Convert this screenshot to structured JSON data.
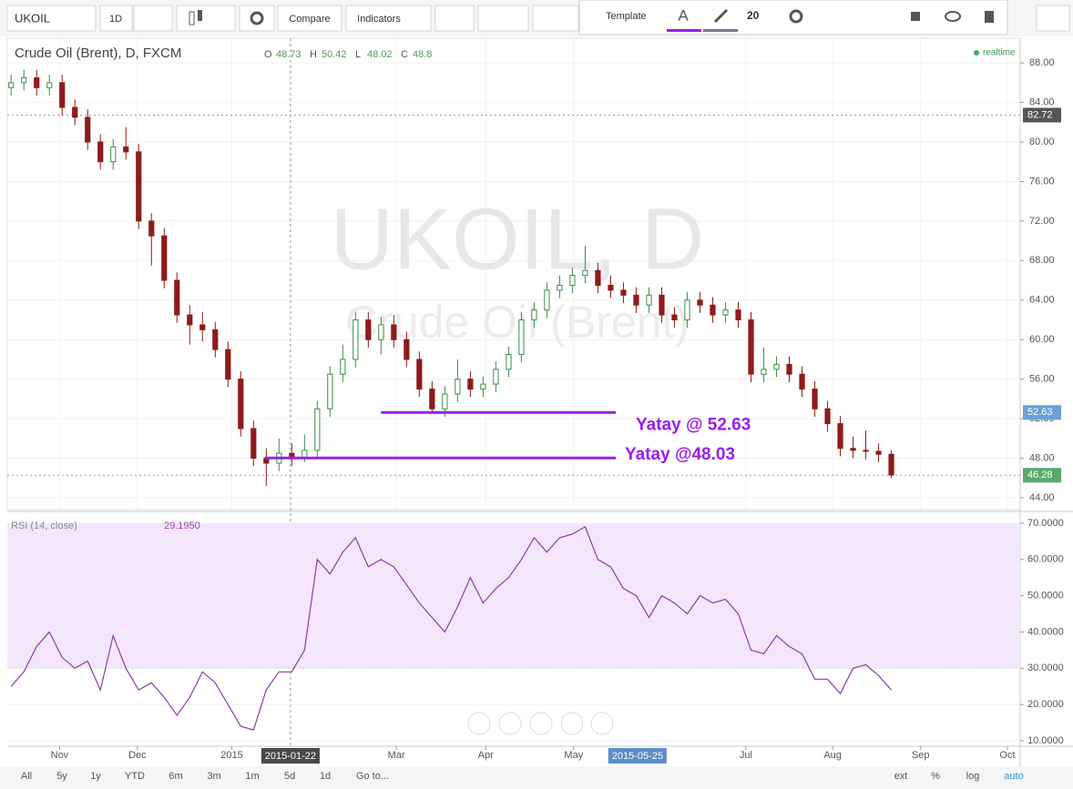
{
  "toolbar": {
    "symbol": "UKOIL",
    "interval": "1D",
    "compare": "Compare",
    "indicators": "Indicators"
  },
  "drawing_toolbar": {
    "template": "Template",
    "font_icon": "A",
    "size": "20"
  },
  "range_bar": [
    "All",
    "5y",
    "1y",
    "YTD",
    "6m",
    "3m",
    "1m",
    "5d",
    "1d",
    "Go to..."
  ],
  "scale_options": [
    "ext",
    "%",
    "log",
    "auto"
  ],
  "chart_data": [
    {
      "type": "candlestick",
      "title": "Crude Oil (Brent), D, FXCM",
      "watermark": [
        "UKOIL, D",
        "Crude Oil (Brent)"
      ],
      "status": "realtime",
      "ohlc_legend": [
        {
          "key": "O",
          "value": 48.73
        },
        {
          "key": "H",
          "value": 50.42
        },
        {
          "key": "L",
          "value": 48.02
        },
        {
          "key": "C",
          "value": 48.8
        }
      ],
      "up_color": "#3d8b4a",
      "down_color": "#8e1b1b",
      "xlim": [
        -0.3,
        79.1
      ],
      "ylim": [
        42.8,
        90.5
      ],
      "grid": true,
      "yticks": [
        {
          "value": 44,
          "label": "44.00"
        },
        {
          "value": 48,
          "label": "48.00"
        },
        {
          "value": 52,
          "label": "52.00"
        },
        {
          "value": 56,
          "label": "56.00"
        },
        {
          "value": 60,
          "label": "60.00"
        },
        {
          "value": 64,
          "label": "64.00"
        },
        {
          "value": 68,
          "label": "68.00"
        },
        {
          "value": 72,
          "label": "72.00"
        },
        {
          "value": 76,
          "label": "76.00"
        },
        {
          "value": 80,
          "label": "80.00"
        },
        {
          "value": 84,
          "label": "84.00"
        },
        {
          "value": 88,
          "label": "88.00"
        }
      ],
      "price_labels": [
        {
          "value": 82.72,
          "color": "#555555",
          "dashed": true
        },
        {
          "value": 52.63,
          "color": "#6a9fd8",
          "dashed": false
        },
        {
          "value": 46.28,
          "color": "#5ba96e",
          "dashed": true
        }
      ],
      "levels": [
        {
          "label": "Yatay @ 52.63",
          "value": 52.63,
          "x": [
            29,
            47.4
          ],
          "color": "#9b1dea"
        },
        {
          "label": "Yatay @48.03",
          "value": 48.03,
          "x": [
            19.9,
            47.4
          ],
          "color": "#9b1dea"
        }
      ],
      "candles": [
        [
          85.5,
          86.8,
          84.7,
          86
        ],
        [
          86,
          87.3,
          85.2,
          86.5
        ],
        [
          86.5,
          87.3,
          84.7,
          85.5
        ],
        [
          85.5,
          86.8,
          84.7,
          86
        ],
        [
          86,
          86.8,
          82.7,
          83.5
        ],
        [
          83.5,
          84.3,
          81.7,
          82.5
        ],
        [
          82.5,
          83.3,
          79.2,
          80
        ],
        [
          80,
          80.8,
          77.2,
          78
        ],
        [
          78,
          80.3,
          77.2,
          79.5
        ],
        [
          79.5,
          81.5,
          78.2,
          79
        ],
        [
          79,
          79.8,
          71.2,
          72
        ],
        [
          72,
          72.8,
          67.5,
          70.5
        ],
        [
          70.5,
          71.3,
          65.2,
          66
        ],
        [
          66,
          66.8,
          61.7,
          62.5
        ],
        [
          62.5,
          63.5,
          59.5,
          61.5
        ],
        [
          61.5,
          62.8,
          59.8,
          61
        ],
        [
          61,
          61.8,
          58.2,
          59
        ],
        [
          59,
          59.8,
          55.2,
          56
        ],
        [
          56,
          56.8,
          50.2,
          51
        ],
        [
          51,
          51.8,
          47.2,
          48
        ],
        [
          48,
          49,
          45.2,
          47.5
        ],
        [
          47.5,
          50,
          46.7,
          48.5
        ],
        [
          48.5,
          49.5,
          47.2,
          48
        ],
        [
          48,
          50.4,
          47.6,
          48.8
        ],
        [
          48.8,
          53.8,
          48,
          53
        ],
        [
          53,
          57.3,
          52.2,
          56.5
        ],
        [
          56.5,
          59.5,
          55.7,
          58
        ],
        [
          58,
          62.8,
          57.2,
          62
        ],
        [
          62,
          62.8,
          59.2,
          60
        ],
        [
          60,
          62.3,
          58.5,
          61.5
        ],
        [
          61.5,
          62.5,
          59.2,
          60
        ],
        [
          60,
          60.8,
          57.2,
          58
        ],
        [
          58,
          58.8,
          54.2,
          55
        ],
        [
          55,
          55.8,
          52.5,
          53
        ],
        [
          53,
          55.3,
          52.2,
          54.5
        ],
        [
          54.5,
          58,
          53.7,
          56
        ],
        [
          56,
          56.8,
          54.2,
          55
        ],
        [
          55,
          56.3,
          54.2,
          55.5
        ],
        [
          55.5,
          57.8,
          54.7,
          57
        ],
        [
          57,
          59.3,
          56.2,
          58.5
        ],
        [
          58.5,
          62.8,
          57.7,
          62
        ],
        [
          62,
          63.8,
          61.2,
          63
        ],
        [
          63,
          65.8,
          62.2,
          65
        ],
        [
          65,
          66.5,
          64.2,
          65.5
        ],
        [
          65.5,
          67.3,
          64.7,
          66.5
        ],
        [
          66.5,
          69.5,
          65.7,
          67
        ],
        [
          67,
          67.8,
          64.7,
          65.5
        ],
        [
          65.5,
          66.5,
          64.2,
          65
        ],
        [
          65,
          65.8,
          63.7,
          64.5
        ],
        [
          64.5,
          65.3,
          62.7,
          63.5
        ],
        [
          63.5,
          65.3,
          62.7,
          64.5
        ],
        [
          64.5,
          65.3,
          61.7,
          62.5
        ],
        [
          62.5,
          63.3,
          61.2,
          62
        ],
        [
          62,
          64.8,
          61.2,
          64
        ],
        [
          64,
          64.8,
          62.7,
          63.5
        ],
        [
          63.5,
          64.3,
          61.7,
          62.5
        ],
        [
          62.5,
          63.8,
          61.7,
          63
        ],
        [
          63,
          63.8,
          61.2,
          62
        ],
        [
          62,
          62.8,
          55.7,
          56.5
        ],
        [
          56.5,
          59.2,
          55.7,
          57
        ],
        [
          57,
          58.3,
          56.2,
          57.5
        ],
        [
          57.5,
          58.3,
          55.7,
          56.5
        ],
        [
          56.5,
          57.3,
          54.2,
          55
        ],
        [
          55,
          55.8,
          52.2,
          53
        ],
        [
          53,
          53.8,
          50.7,
          51.5
        ],
        [
          51.5,
          52.3,
          48.2,
          49
        ],
        [
          49,
          50.2,
          48,
          48.8
        ],
        [
          48.8,
          50.8,
          47.9,
          48.7
        ],
        [
          48.7,
          49.5,
          47.6,
          48.4
        ],
        [
          48.4,
          48.8,
          46,
          46.3
        ]
      ]
    },
    {
      "type": "line",
      "title": "RSI (14, close)",
      "value_label": "29.1950",
      "color": "#8b3ea6",
      "band": [
        30,
        70
      ],
      "band_color": "#f4e6fc",
      "xlim": [
        -0.3,
        79.1
      ],
      "ylim": [
        8.5,
        72.5
      ],
      "grid": true,
      "yticks": [
        {
          "value": 10,
          "label": "10.0000"
        },
        {
          "value": 20,
          "label": "20.0000"
        },
        {
          "value": 30,
          "label": "30.0000"
        },
        {
          "value": 40,
          "label": "40.0000"
        },
        {
          "value": 50,
          "label": "50.0000"
        },
        {
          "value": 60,
          "label": "60.0000"
        },
        {
          "value": 70,
          "label": "70.0000"
        }
      ],
      "xticks": [
        {
          "value": 3.8,
          "label": "Nov"
        },
        {
          "value": 9.9,
          "label": "Dec"
        },
        {
          "value": 17.3,
          "label": "2015"
        },
        {
          "value": 30.2,
          "label": "Mar"
        },
        {
          "value": 37.2,
          "label": "Apr"
        },
        {
          "value": 44.1,
          "label": "May"
        },
        {
          "value": 57.6,
          "label": "Jul"
        },
        {
          "value": 64.4,
          "label": "Aug"
        },
        {
          "value": 71.3,
          "label": "Sep"
        },
        {
          "value": 78.1,
          "label": "Oct"
        }
      ],
      "crosshair_labels": [
        {
          "value": 21.9,
          "label": "2015-01-22",
          "color": "#4a4a4a"
        },
        {
          "value": 49.1,
          "label": "2015-05-25",
          "color": "#5b8dc8"
        }
      ],
      "values": [
        25,
        29,
        36,
        40,
        33,
        30,
        32,
        24,
        39,
        30,
        24,
        26,
        22,
        17,
        22,
        29,
        26,
        20,
        14,
        13,
        24,
        29,
        29,
        35,
        60,
        56,
        62,
        66,
        58,
        60,
        58,
        53,
        48,
        44,
        40,
        47,
        55,
        48,
        52,
        55,
        60,
        66,
        62,
        66,
        67,
        69,
        60,
        58,
        52,
        50,
        44,
        50,
        48,
        45,
        50,
        48,
        49,
        45,
        35,
        34,
        39,
        36,
        34,
        27,
        27,
        23,
        30,
        31,
        28,
        24
      ]
    }
  ]
}
